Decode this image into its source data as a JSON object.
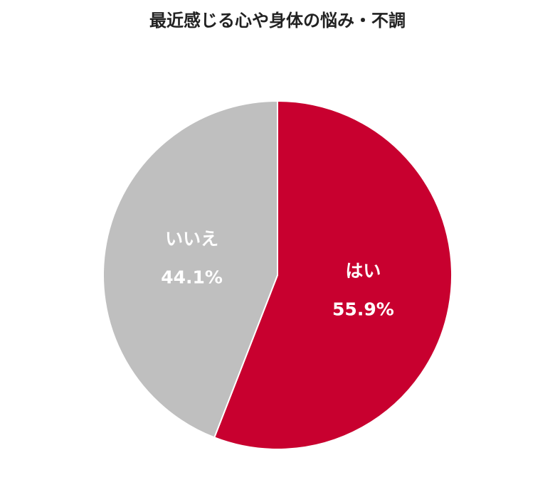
{
  "chart_data": {
    "type": "pie",
    "title": "最近感じる心や身体の悩み・不調",
    "categories": [
      "はい",
      "いいえ"
    ],
    "values": [
      55.9,
      44.1
    ],
    "value_labels": [
      "55.9%",
      "44.1%"
    ],
    "colors": [
      "#c8002f",
      "#bfbfbf"
    ]
  }
}
